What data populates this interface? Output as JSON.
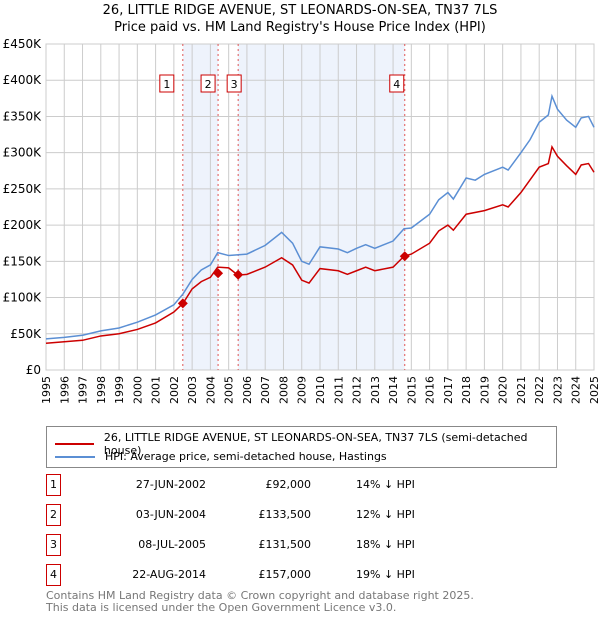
{
  "chart_data": {
    "type": "line",
    "title": "26, LITTLE RIDGE AVENUE, ST LEONARDS-ON-SEA, TN37 7LS",
    "subtitle": "Price paid vs. HM Land Registry's House Price Index (HPI)",
    "xlim": [
      1995,
      2025
    ],
    "ylim": [
      0,
      450000
    ],
    "yticks": [
      {
        "v": 0,
        "l": "£0"
      },
      {
        "v": 50000,
        "l": "£50K"
      },
      {
        "v": 100000,
        "l": "£100K"
      },
      {
        "v": 150000,
        "l": "£150K"
      },
      {
        "v": 200000,
        "l": "£200K"
      },
      {
        "v": 250000,
        "l": "£250K"
      },
      {
        "v": 300000,
        "l": "£300K"
      },
      {
        "v": 350000,
        "l": "£350K"
      },
      {
        "v": 400000,
        "l": "£400K"
      },
      {
        "v": 450000,
        "l": "£450K"
      }
    ],
    "xticks": [
      "1995",
      "1996",
      "1997",
      "1998",
      "1999",
      "2000",
      "2001",
      "2002",
      "2003",
      "2004",
      "2005",
      "2006",
      "2007",
      "2008",
      "2009",
      "2010",
      "2011",
      "2012",
      "2013",
      "2014",
      "2015",
      "2016",
      "2017",
      "2018",
      "2019",
      "2020",
      "2021",
      "2022",
      "2023",
      "2024",
      "2025"
    ],
    "grid": true,
    "series": [
      {
        "name": "26, LITTLE RIDGE AVENUE, ST LEONARDS-ON-SEA, TN37 7LS (semi-detached house)",
        "color": "#cc0000",
        "x": [
          1995,
          1996,
          1997,
          1998,
          1999,
          2000,
          2001,
          2002,
          2002.5,
          2003,
          2003.5,
          2004,
          2004.4,
          2005,
          2005.5,
          2006,
          2007,
          2007.9,
          2008.5,
          2009,
          2009.4,
          2010,
          2011,
          2011.5,
          2012,
          2012.5,
          2013,
          2014,
          2014.6,
          2015,
          2016,
          2016.5,
          2017,
          2017.3,
          2018,
          2019,
          2020,
          2020.3,
          2021,
          2022,
          2022.5,
          2022.7,
          2023,
          2023.5,
          2024,
          2024.3,
          2024.7,
          2025
        ],
        "y": [
          37000,
          39000,
          41000,
          47000,
          50000,
          56000,
          65000,
          80000,
          92000,
          112000,
          122000,
          128000,
          142000,
          141000,
          131000,
          132000,
          142000,
          155000,
          145000,
          124000,
          120000,
          140000,
          137000,
          132000,
          137000,
          142000,
          137000,
          142000,
          157000,
          160000,
          175000,
          192000,
          200000,
          193000,
          215000,
          220000,
          228000,
          225000,
          245000,
          280000,
          285000,
          308000,
          295000,
          282000,
          270000,
          283000,
          285000,
          273000
        ]
      },
      {
        "name": "HPI: Average price, semi-detached house, Hastings",
        "color": "#5b8fd4",
        "x": [
          1995,
          1996,
          1997,
          1998,
          1999,
          2000,
          2001,
          2002,
          2002.5,
          2003,
          2003.5,
          2004,
          2004.4,
          2005,
          2006,
          2007,
          2007.9,
          2008.5,
          2009,
          2009.4,
          2010,
          2011,
          2011.5,
          2012,
          2012.5,
          2013,
          2014,
          2014.6,
          2015,
          2016,
          2016.5,
          2017,
          2017.3,
          2018,
          2018.5,
          2019,
          2020,
          2020.3,
          2021,
          2021.5,
          2022,
          2022.5,
          2022.7,
          2023,
          2023.5,
          2024,
          2024.3,
          2024.7,
          2025
        ],
        "y": [
          43000,
          45000,
          48000,
          54000,
          58000,
          66000,
          76000,
          90000,
          105000,
          125000,
          138000,
          145000,
          162000,
          158000,
          160000,
          172000,
          190000,
          175000,
          150000,
          146000,
          170000,
          167000,
          162000,
          168000,
          173000,
          168000,
          178000,
          195000,
          196000,
          215000,
          235000,
          245000,
          236000,
          265000,
          262000,
          270000,
          280000,
          276000,
          300000,
          318000,
          342000,
          352000,
          378000,
          360000,
          345000,
          335000,
          348000,
          350000,
          335000
        ]
      }
    ],
    "sales": [
      {
        "n": "1",
        "x": 2002.49,
        "y": 92000,
        "date": "27-JUN-2002",
        "price": "£92,000",
        "hpi": "14% ↓ HPI"
      },
      {
        "n": "2",
        "x": 2004.42,
        "y": 133500,
        "date": "03-JUN-2004",
        "price": "£133,500",
        "hpi": "12% ↓ HPI"
      },
      {
        "n": "3",
        "x": 2005.52,
        "y": 131500,
        "date": "08-JUL-2005",
        "price": "£131,500",
        "hpi": "18% ↓ HPI"
      },
      {
        "n": "4",
        "x": 2014.64,
        "y": 157000,
        "date": "22-AUG-2014",
        "price": "£157,000",
        "hpi": "19% ↓ HPI"
      }
    ],
    "legend_placement": "below"
  },
  "footer": [
    "Contains HM Land Registry data © Crown copyright and database right 2025.",
    "This data is licensed under the Open Government Licence v3.0."
  ]
}
